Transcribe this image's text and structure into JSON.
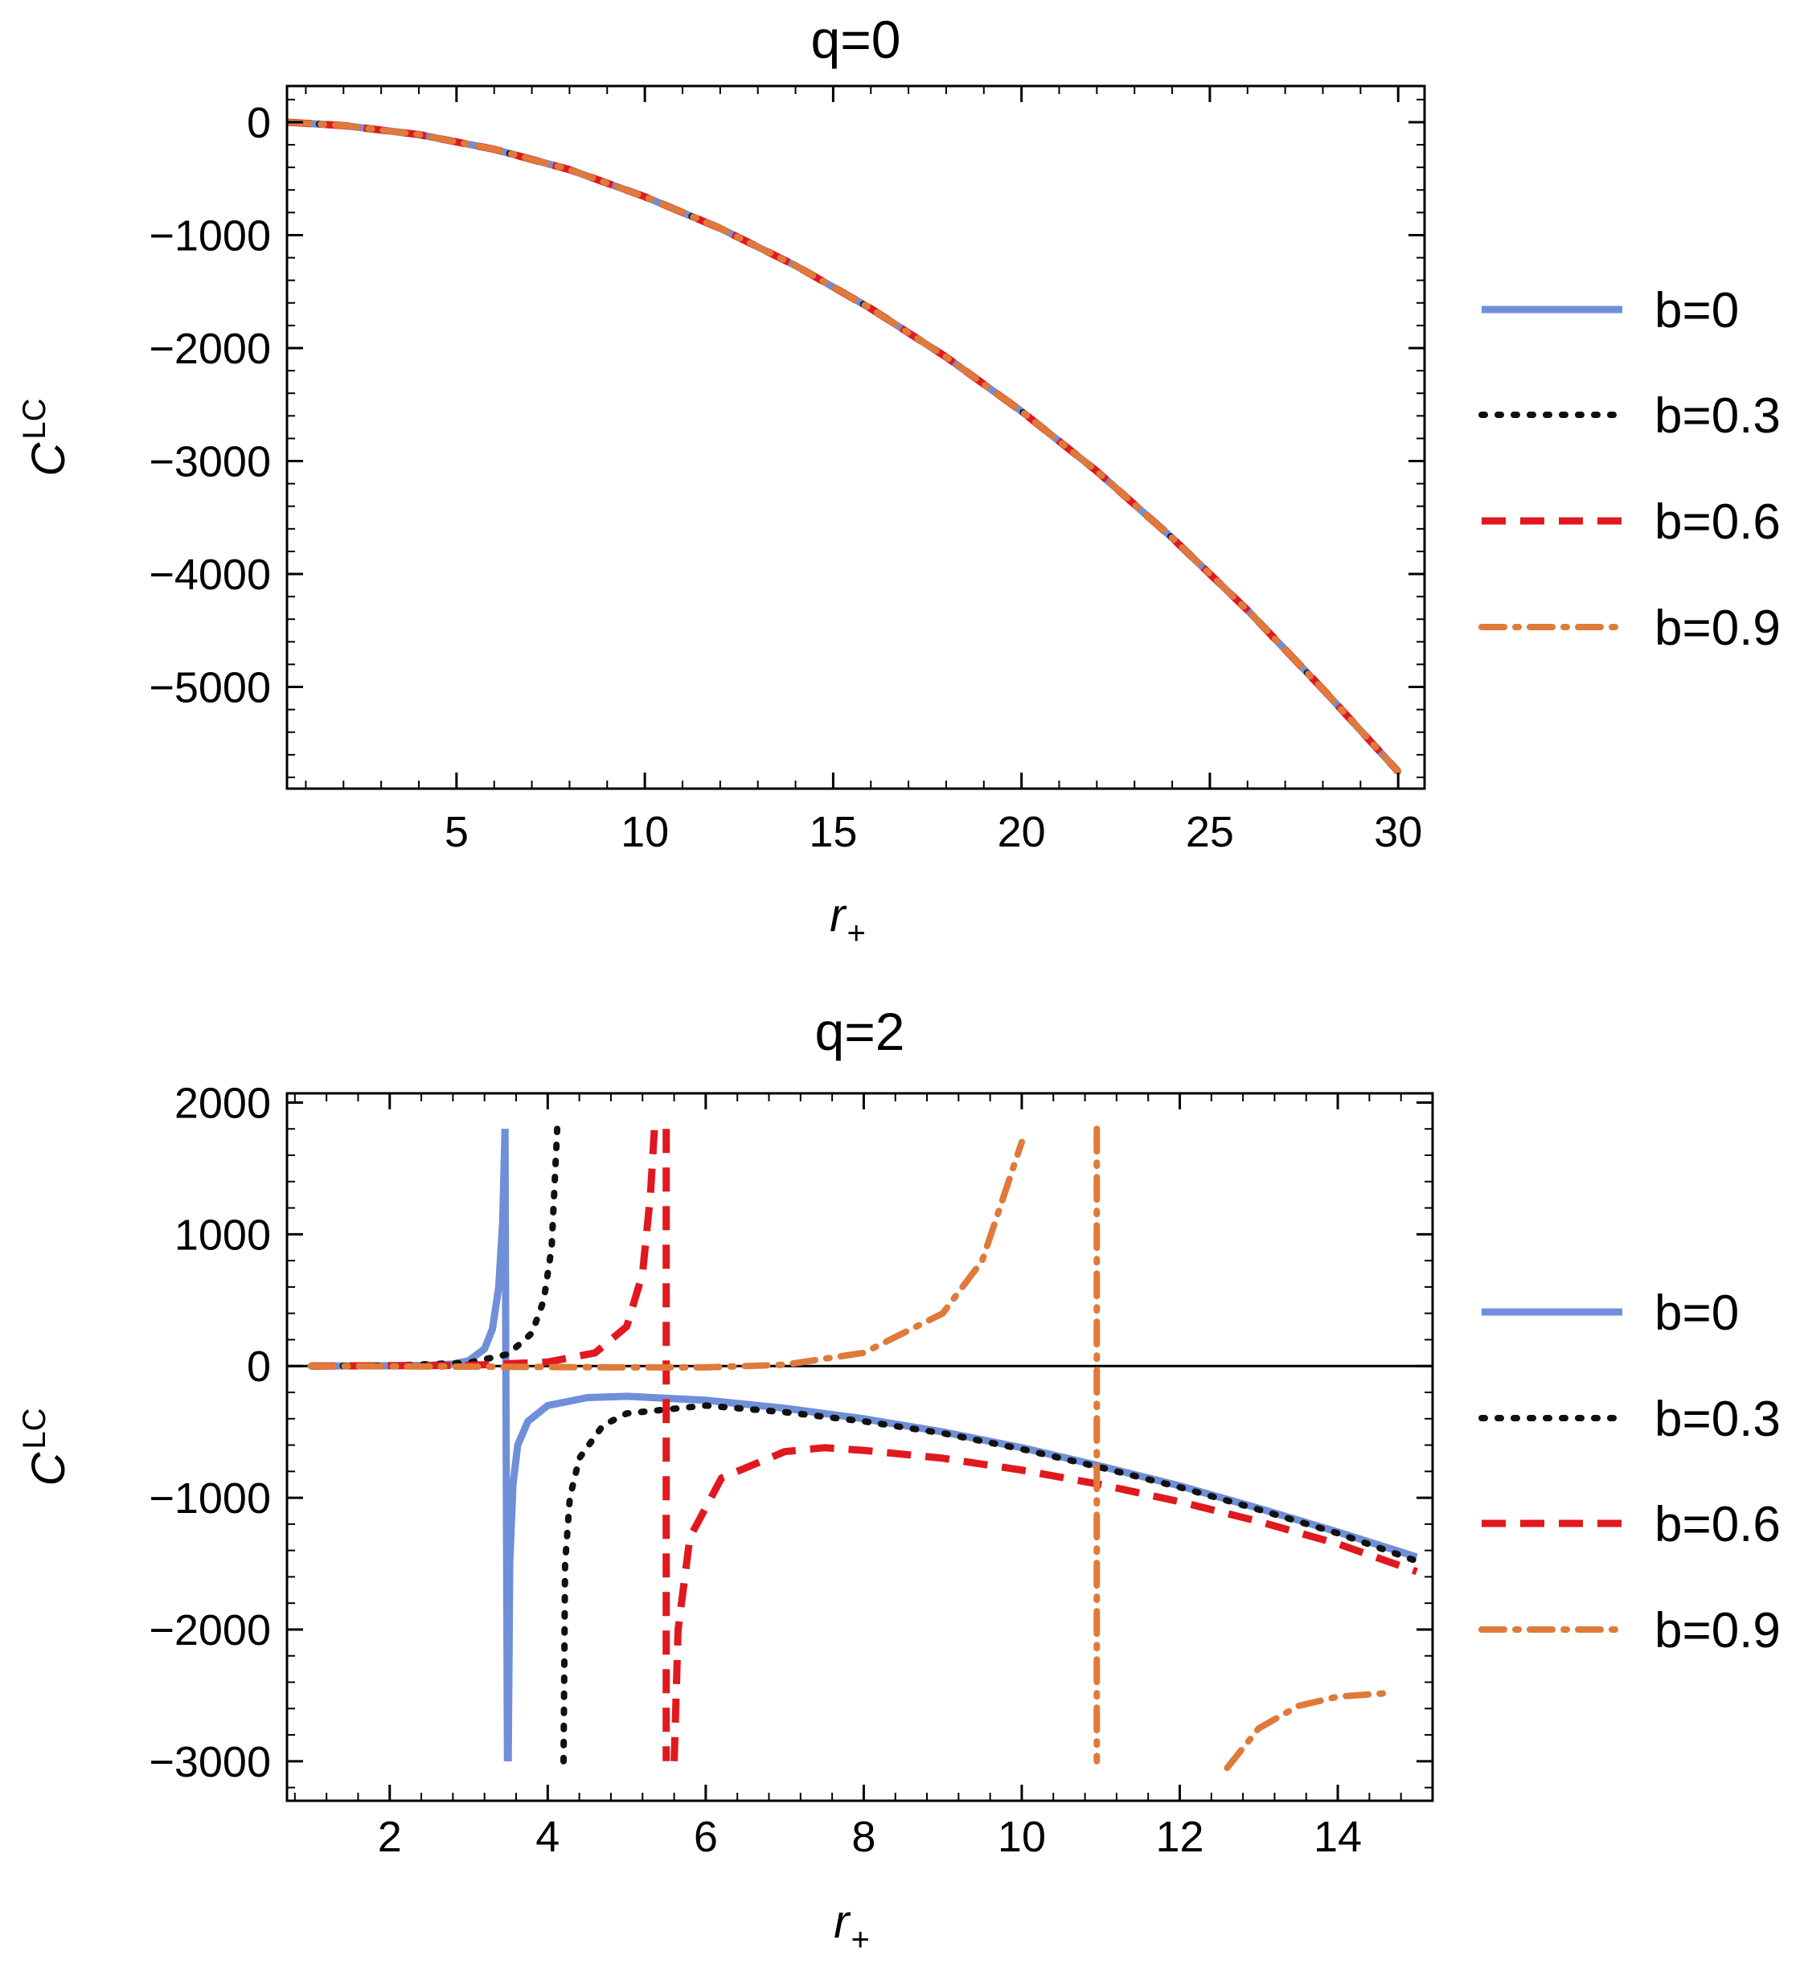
{
  "chart_data": [
    {
      "type": "line",
      "title": "q=0",
      "xlabel": "r",
      "xlabel_sub": "+",
      "ylabel": "C",
      "ylabel_sup": "LC",
      "xlim": [
        0.5,
        30.7
      ],
      "ylim": [
        -5900,
        320
      ],
      "xticks": [
        5,
        10,
        15,
        20,
        25,
        30
      ],
      "xtick_labels": [
        "5",
        "10",
        "15",
        "20",
        "25",
        "30"
      ],
      "yticks": [
        0,
        -1000,
        -2000,
        -3000,
        -4000,
        -5000
      ],
      "ytick_labels": [
        "0",
        "−1000",
        "−2000",
        "−3000",
        "−4000",
        "−5000"
      ],
      "grid": false,
      "legend_position": "right",
      "series": [
        {
          "name": "b=0",
          "color": "#6f8fd8",
          "style": "solid",
          "segments": [
            [
              [
                0.5,
                0
              ],
              [
                2,
                -30
              ],
              [
                4,
                -110
              ],
              [
                6,
                -240
              ],
              [
                8,
                -420
              ],
              [
                10,
                -660
              ],
              [
                12,
                -940
              ],
              [
                14,
                -1270
              ],
              [
                16,
                -1650
              ],
              [
                18,
                -2080
              ],
              [
                20,
                -2560
              ],
              [
                22,
                -3090
              ],
              [
                24,
                -3680
              ],
              [
                26,
                -4320
              ],
              [
                28,
                -5020
              ],
              [
                30,
                -5750
              ]
            ]
          ]
        },
        {
          "name": "b=0.3",
          "color": "#111111",
          "style": "dotted",
          "segments": [
            [
              [
                0.5,
                0
              ],
              [
                2,
                -30
              ],
              [
                4,
                -110
              ],
              [
                6,
                -240
              ],
              [
                8,
                -420
              ],
              [
                10,
                -660
              ],
              [
                12,
                -940
              ],
              [
                14,
                -1270
              ],
              [
                16,
                -1650
              ],
              [
                18,
                -2080
              ],
              [
                20,
                -2560
              ],
              [
                22,
                -3090
              ],
              [
                24,
                -3680
              ],
              [
                26,
                -4320
              ],
              [
                28,
                -5020
              ],
              [
                30,
                -5750
              ]
            ]
          ]
        },
        {
          "name": "b=0.6",
          "color": "#e0191f",
          "style": "dashed",
          "segments": [
            [
              [
                0.5,
                0
              ],
              [
                2,
                -30
              ],
              [
                4,
                -110
              ],
              [
                6,
                -240
              ],
              [
                8,
                -420
              ],
              [
                10,
                -660
              ],
              [
                12,
                -940
              ],
              [
                14,
                -1270
              ],
              [
                16,
                -1650
              ],
              [
                18,
                -2080
              ],
              [
                20,
                -2560
              ],
              [
                22,
                -3090
              ],
              [
                24,
                -3680
              ],
              [
                26,
                -4320
              ],
              [
                28,
                -5020
              ],
              [
                30,
                -5750
              ]
            ]
          ]
        },
        {
          "name": "b=0.9",
          "color": "#e07a3a",
          "style": "dashdot",
          "segments": [
            [
              [
                0.5,
                0
              ],
              [
                2,
                -30
              ],
              [
                4,
                -110
              ],
              [
                6,
                -240
              ],
              [
                8,
                -420
              ],
              [
                10,
                -660
              ],
              [
                12,
                -940
              ],
              [
                14,
                -1270
              ],
              [
                16,
                -1650
              ],
              [
                18,
                -2080
              ],
              [
                20,
                -2560
              ],
              [
                22,
                -3090
              ],
              [
                24,
                -3680
              ],
              [
                26,
                -4320
              ],
              [
                28,
                -5020
              ],
              [
                30,
                -5750
              ]
            ]
          ]
        }
      ]
    },
    {
      "type": "line",
      "title": "q=2",
      "xlabel": "r",
      "xlabel_sub": "+",
      "ylabel": "C",
      "ylabel_sup": "LC",
      "xlim": [
        0.7,
        15.2
      ],
      "ylim": [
        -3300,
        2070
      ],
      "xticks": [
        2,
        4,
        6,
        8,
        10,
        12,
        14
      ],
      "xtick_labels": [
        "2",
        "4",
        "6",
        "8",
        "10",
        "12",
        "14"
      ],
      "yticks": [
        2000,
        1000,
        0,
        -1000,
        -2000,
        -3000
      ],
      "ytick_labels": [
        "2000",
        "1000",
        "0",
        "−1000",
        "−2000",
        "−3000"
      ],
      "grid": false,
      "zero_line": true,
      "legend_position": "right",
      "series": [
        {
          "name": "b=0",
          "color": "#6f8fd8",
          "style": "solid",
          "segments": [
            [
              [
                1,
                0
              ],
              [
                2,
                2
              ],
              [
                2.5,
                5
              ],
              [
                2.8,
                15
              ],
              [
                3,
                40
              ],
              [
                3.2,
                130
              ],
              [
                3.3,
                280
              ],
              [
                3.38,
                600
              ],
              [
                3.43,
                1100
              ],
              [
                3.46,
                1800
              ]
            ],
            [
              [
                3.46,
                1800
              ],
              [
                3.47,
                0
              ],
              [
                3.49,
                -3000
              ]
            ],
            [
              [
                3.5,
                -3000
              ],
              [
                3.52,
                -1500
              ],
              [
                3.56,
                -900
              ],
              [
                3.62,
                -600
              ],
              [
                3.75,
                -420
              ],
              [
                4,
                -300
              ],
              [
                4.5,
                -240
              ],
              [
                5,
                -230
              ],
              [
                6,
                -260
              ],
              [
                7,
                -320
              ],
              [
                8,
                -400
              ],
              [
                9,
                -500
              ],
              [
                10,
                -620
              ],
              [
                11,
                -760
              ],
              [
                12,
                -910
              ],
              [
                13,
                -1080
              ],
              [
                14,
                -1260
              ],
              [
                15,
                -1450
              ]
            ]
          ]
        },
        {
          "name": "b=0.3",
          "color": "#111111",
          "style": "dotted",
          "segments": [
            [
              [
                1,
                0
              ],
              [
                2,
                3
              ],
              [
                3,
                25
              ],
              [
                3.5,
                90
              ],
              [
                3.8,
                250
              ],
              [
                3.95,
                500
              ],
              [
                4.05,
                900
              ],
              [
                4.12,
                1800
              ]
            ],
            [
              [
                4.2,
                -3000
              ],
              [
                4.22,
                -1500
              ],
              [
                4.28,
                -1000
              ],
              [
                4.4,
                -700
              ],
              [
                4.7,
                -450
              ],
              [
                5,
                -360
              ],
              [
                6,
                -300
              ],
              [
                7,
                -350
              ],
              [
                8,
                -420
              ],
              [
                9,
                -510
              ],
              [
                10,
                -630
              ],
              [
                11,
                -770
              ],
              [
                12,
                -920
              ],
              [
                13,
                -1090
              ],
              [
                14,
                -1270
              ],
              [
                15,
                -1480
              ]
            ]
          ]
        },
        {
          "name": "b=0.6",
          "color": "#e0191f",
          "style": "dashed",
          "segments": [
            [
              [
                1,
                0
              ],
              [
                3,
                5
              ],
              [
                4,
                30
              ],
              [
                4.6,
                100
              ],
              [
                5,
                300
              ],
              [
                5.2,
                700
              ],
              [
                5.3,
                1300
              ],
              [
                5.35,
                1800
              ]
            ],
            [
              [
                5.5,
                1800
              ],
              [
                5.5,
                -3000
              ]
            ],
            [
              [
                5.6,
                -3000
              ],
              [
                5.65,
                -2000
              ],
              [
                5.8,
                -1300
              ],
              [
                6.2,
                -850
              ],
              [
                7,
                -650
              ],
              [
                7.5,
                -620
              ],
              [
                8,
                -640
              ],
              [
                9,
                -700
              ],
              [
                10,
                -790
              ],
              [
                11,
                -900
              ],
              [
                12,
                -1030
              ],
              [
                13,
                -1180
              ],
              [
                14,
                -1350
              ],
              [
                15,
                -1560
              ]
            ]
          ]
        },
        {
          "name": "b=0.9",
          "color": "#e07a3a",
          "style": "dashdot",
          "segments": [
            [
              [
                1,
                0
              ],
              [
                5,
                -10
              ],
              [
                6,
                -10
              ],
              [
                7,
                10
              ],
              [
                8,
                100
              ],
              [
                9,
                400
              ],
              [
                9.5,
                800
              ],
              [
                10,
                1700
              ]
            ],
            [
              [
                10.95,
                1800
              ],
              [
                10.95,
                -3000
              ]
            ],
            [
              [
                12.6,
                -3050
              ],
              [
                13,
                -2750
              ],
              [
                13.5,
                -2580
              ],
              [
                14,
                -2510
              ],
              [
                14.7,
                -2480
              ]
            ]
          ]
        }
      ]
    }
  ]
}
